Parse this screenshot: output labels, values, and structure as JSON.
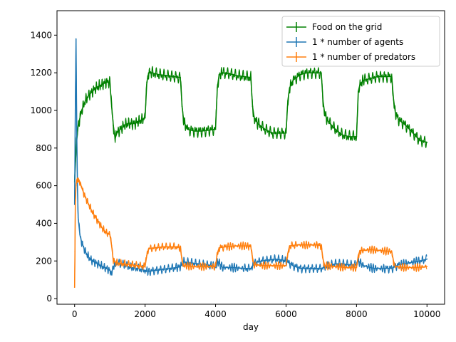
{
  "chart_data": {
    "type": "line",
    "title": "",
    "xlabel": "day",
    "ylabel": "",
    "xlim": [
      -500,
      10500
    ],
    "ylim": [
      -30,
      1530
    ],
    "xticks": [
      0,
      2000,
      4000,
      6000,
      8000,
      10000
    ],
    "xtick_labels": [
      "0",
      "2000",
      "4000",
      "6000",
      "8000",
      "10000"
    ],
    "yticks": [
      0,
      200,
      400,
      600,
      800,
      1000,
      1200,
      1400
    ],
    "ytick_labels": [
      "0",
      "200",
      "400",
      "600",
      "800",
      "1000",
      "1200",
      "1400"
    ],
    "grid": false,
    "legend_position": "upper right",
    "series": [
      {
        "name": "Food on the grid",
        "color": "#008000",
        "x": [
          0,
          50,
          100,
          200,
          300,
          400,
          500,
          600,
          700,
          800,
          900,
          1000,
          1050,
          1100,
          1150,
          1200,
          1300,
          1400,
          1500,
          1600,
          1700,
          1800,
          1900,
          2000,
          2050,
          2100,
          2200,
          2400,
          2600,
          2800,
          3000,
          3050,
          3100,
          3200,
          3400,
          3600,
          3800,
          4000,
          4050,
          4100,
          4200,
          4400,
          4600,
          4800,
          5000,
          5050,
          5100,
          5200,
          5400,
          5600,
          5800,
          6000,
          6050,
          6100,
          6200,
          6400,
          6600,
          6800,
          7000,
          7050,
          7100,
          7200,
          7400,
          7600,
          7800,
          8000,
          8050,
          8100,
          8200,
          8400,
          8600,
          8800,
          9000,
          9050,
          9100,
          9200,
          9400,
          9600,
          9800,
          10000
        ],
        "values": [
          620,
          820,
          920,
          1000,
          1050,
          1080,
          1100,
          1120,
          1130,
          1140,
          1150,
          1150,
          1020,
          920,
          850,
          880,
          900,
          920,
          930,
          930,
          930,
          940,
          950,
          960,
          1150,
          1200,
          1200,
          1190,
          1185,
          1180,
          1175,
          1020,
          940,
          900,
          890,
          890,
          895,
          900,
          1120,
          1190,
          1200,
          1195,
          1185,
          1180,
          1175,
          1020,
          960,
          930,
          900,
          880,
          880,
          880,
          1050,
          1120,
          1160,
          1190,
          1200,
          1200,
          1200,
          1050,
          980,
          940,
          900,
          870,
          860,
          860,
          1100,
          1140,
          1160,
          1170,
          1180,
          1180,
          1180,
          1060,
          990,
          950,
          920,
          880,
          840,
          830
        ]
      },
      {
        "name": "1 * number of agents",
        "color": "#1f77b4",
        "x": [
          0,
          20,
          40,
          60,
          80,
          100,
          150,
          200,
          300,
          400,
          500,
          600,
          700,
          800,
          900,
          1000,
          1050,
          1100,
          1200,
          1400,
          1600,
          1800,
          2000,
          2100,
          2300,
          2500,
          2700,
          2900,
          3000,
          3100,
          3300,
          3500,
          3700,
          3900,
          4000,
          4050,
          4200,
          4500,
          4800,
          5000,
          5100,
          5300,
          5500,
          5700,
          5900,
          6000,
          6200,
          6400,
          6600,
          6800,
          7000,
          7200,
          7400,
          7600,
          7800,
          8000,
          8050,
          8200,
          8500,
          8800,
          9000,
          9200,
          9500,
          9800,
          10000
        ],
        "values": [
          500,
          1000,
          1380,
          900,
          600,
          430,
          340,
          300,
          250,
          220,
          200,
          190,
          180,
          170,
          160,
          150,
          140,
          170,
          190,
          180,
          165,
          160,
          150,
          145,
          150,
          155,
          160,
          165,
          170,
          195,
          190,
          185,
          180,
          175,
          170,
          200,
          165,
          165,
          160,
          160,
          190,
          200,
          205,
          210,
          205,
          200,
          175,
          160,
          160,
          160,
          160,
          175,
          185,
          185,
          180,
          180,
          200,
          175,
          160,
          160,
          160,
          180,
          190,
          200,
          210
        ]
      },
      {
        "name": "1 * number of predators",
        "color": "#ff7f0e",
        "x": [
          0,
          10,
          20,
          40,
          60,
          80,
          100,
          150,
          200,
          300,
          400,
          500,
          600,
          700,
          800,
          900,
          1000,
          1050,
          1100,
          1200,
          1400,
          1600,
          1800,
          2000,
          2050,
          2100,
          2300,
          2500,
          2700,
          2900,
          3000,
          3050,
          3100,
          3400,
          3700,
          4000,
          4050,
          4100,
          4300,
          4600,
          4900,
          5000,
          5050,
          5100,
          5400,
          5700,
          6000,
          6050,
          6100,
          6300,
          6600,
          6900,
          7000,
          7050,
          7100,
          7400,
          7700,
          8000,
          8050,
          8100,
          8400,
          8700,
          9000,
          9050,
          9100,
          9400,
          9700,
          10000
        ],
        "values": [
          60,
          250,
          500,
          600,
          630,
          640,
          640,
          620,
          590,
          540,
          500,
          460,
          430,
          400,
          370,
          350,
          340,
          280,
          200,
          190,
          185,
          180,
          175,
          170,
          230,
          265,
          270,
          275,
          275,
          275,
          270,
          200,
          175,
          170,
          170,
          170,
          240,
          270,
          275,
          280,
          280,
          275,
          215,
          180,
          175,
          175,
          175,
          240,
          280,
          285,
          285,
          285,
          280,
          210,
          175,
          170,
          165,
          165,
          230,
          255,
          260,
          255,
          250,
          200,
          170,
          165,
          165,
          170
        ]
      }
    ]
  }
}
